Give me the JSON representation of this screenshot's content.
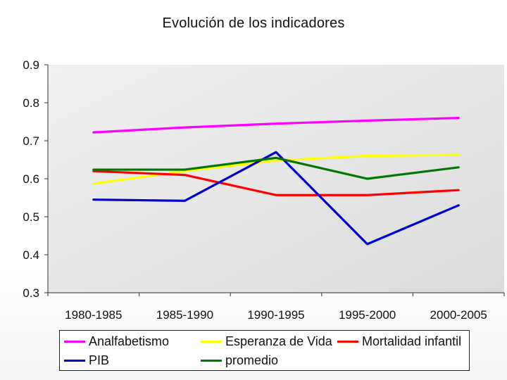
{
  "chart_data": {
    "type": "line",
    "title": "Evolución de los indicadores",
    "categories": [
      "1980-1985",
      "1985-1990",
      "1990-1995",
      "1995-2000",
      "2000-2005"
    ],
    "ylim": [
      0.3,
      0.9
    ],
    "yticks": [
      "0.9",
      "0.8",
      "0.7",
      "0.6",
      "0.5",
      "0.4",
      "0.3"
    ],
    "series": [
      {
        "name": "Analfabetismo",
        "color": "#ff00ff",
        "values": [
          0.722,
          0.735,
          0.745,
          0.753,
          0.76
        ]
      },
      {
        "name": "Esperanza de Vida",
        "color": "#ffff00",
        "values": [
          0.587,
          0.62,
          0.648,
          0.66,
          0.663
        ]
      },
      {
        "name": "Mortalidad infantil",
        "color": "#ff0000",
        "values": [
          0.62,
          0.61,
          0.557,
          0.557,
          0.57
        ]
      },
      {
        "name": "PIB",
        "color": "#0000cc",
        "values": [
          0.545,
          0.542,
          0.67,
          0.428,
          0.53
        ]
      },
      {
        "name": "promedio",
        "color": "#007700",
        "values": [
          0.624,
          0.624,
          0.655,
          0.6,
          0.63
        ]
      }
    ],
    "legend": "bottom",
    "grid": false
  }
}
